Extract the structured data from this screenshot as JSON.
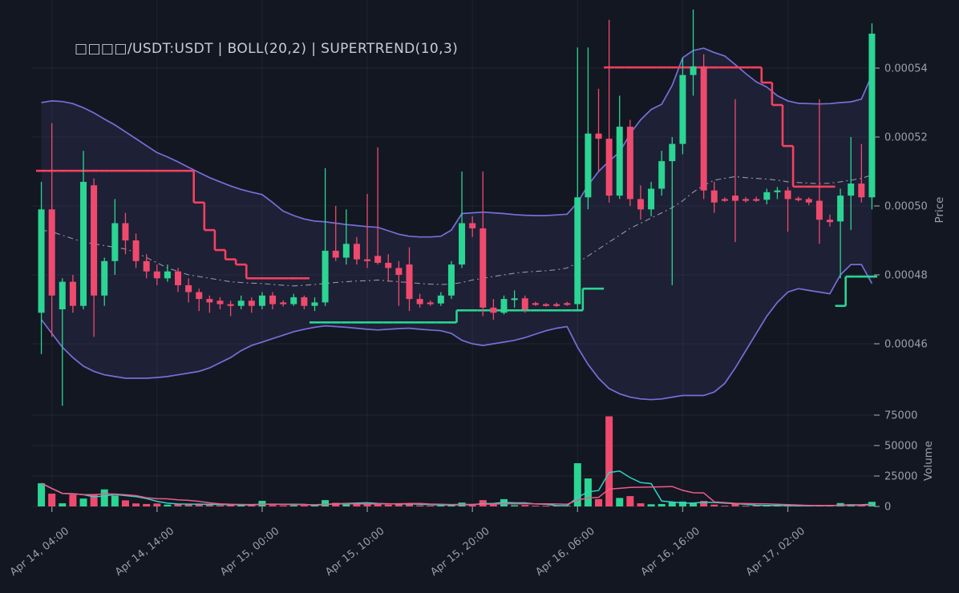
{
  "title": "□□□□/USDT:USDT | BOLL(20,2) | SUPERTREND(10,3)",
  "colors": {
    "background": "#131722",
    "grid": "rgba(200,208,222,0.07)",
    "candle_up": "#2bd593",
    "candle_down": "#ef4a6e",
    "boll_band": "#7470d8",
    "boll_fill": "rgba(124,116,222,0.10)",
    "boll_mid": "#a8adb8",
    "supertrend_up": "#2bd593",
    "supertrend_down": "#f5415f",
    "volume_ma_fast": "#2fd4c6",
    "volume_ma_slow": "#ee5c8b",
    "tick_text": "#9aa0ac",
    "tick_mark": "#8a8f99",
    "title_text": "#c7ccd6"
  },
  "axes": {
    "price_label": "Price",
    "volume_label": "Volume",
    "price_ticks": [
      {
        "value": 54,
        "label": "0.00054"
      },
      {
        "value": 52,
        "label": "0.00052"
      },
      {
        "value": 50,
        "label": "0.00050"
      },
      {
        "value": 48,
        "label": "0.00048"
      },
      {
        "value": 46,
        "label": "0.00046"
      }
    ],
    "volume_ticks": [
      {
        "value": 75000,
        "label": "75000"
      },
      {
        "value": 50000,
        "label": "50000"
      },
      {
        "value": 25000,
        "label": "25000"
      },
      {
        "value": 0,
        "label": "0"
      }
    ],
    "time_ticks": [
      {
        "index": 1,
        "label": "Apr 14, 04:00"
      },
      {
        "index": 11,
        "label": "Apr 14, 14:00"
      },
      {
        "index": 21,
        "label": "Apr 15, 00:00"
      },
      {
        "index": 31,
        "label": "Apr 15, 10:00"
      },
      {
        "index": 41,
        "label": "Apr 15, 20:00"
      },
      {
        "index": 51,
        "label": "Apr 16, 06:00"
      },
      {
        "index": 61,
        "label": "Apr 16, 16:00"
      },
      {
        "index": 71,
        "label": "Apr 17, 02:00"
      }
    ]
  },
  "chart_data": {
    "type": "candlestick",
    "symbol": "□□□□/USDT:USDT",
    "indicators": [
      "BOLL(20,2)",
      "SUPERTREND(10,3)"
    ],
    "timeframe_hours": 1,
    "price_unit": "1e-5 USDT",
    "price_range_shown": [
      46,
      54
    ],
    "volume_range_shown": [
      0,
      75000
    ],
    "candles_ohlcv": [
      [
        46.9,
        50.7,
        45.7,
        49.9,
        19000
      ],
      [
        49.9,
        52.4,
        46.2,
        47.4,
        10500
      ],
      [
        47.0,
        47.9,
        44.2,
        47.8,
        2600
      ],
      [
        47.8,
        48.0,
        46.9,
        47.1,
        9800
      ],
      [
        47.1,
        51.6,
        47.0,
        50.7,
        6500
      ],
      [
        50.6,
        50.8,
        46.2,
        47.4,
        10000
      ],
      [
        47.4,
        48.5,
        47.1,
        48.4,
        14000
      ],
      [
        48.4,
        50.2,
        48.0,
        49.5,
        9000
      ],
      [
        49.5,
        49.8,
        48.6,
        49.0,
        5000
      ],
      [
        49.0,
        49.2,
        48.2,
        48.4,
        2500
      ],
      [
        48.4,
        48.6,
        47.9,
        48.1,
        2000
      ],
      [
        48.1,
        48.3,
        47.7,
        47.9,
        2400
      ],
      [
        47.9,
        48.3,
        47.8,
        48.1,
        1500
      ],
      [
        48.1,
        48.2,
        47.5,
        47.7,
        1800
      ],
      [
        47.7,
        47.9,
        47.2,
        47.5,
        2000
      ],
      [
        47.5,
        47.6,
        46.95,
        47.3,
        1700
      ],
      [
        47.3,
        47.4,
        46.9,
        47.2,
        1500
      ],
      [
        47.25,
        47.35,
        47.0,
        47.15,
        900
      ],
      [
        47.15,
        47.25,
        46.8,
        47.1,
        1300
      ],
      [
        47.1,
        47.4,
        47.0,
        47.25,
        1100
      ],
      [
        47.25,
        47.35,
        46.9,
        47.1,
        1400
      ],
      [
        47.1,
        47.5,
        47.0,
        47.4,
        4600
      ],
      [
        47.4,
        47.5,
        47.0,
        47.15,
        1200
      ],
      [
        47.2,
        47.26,
        47.08,
        47.15,
        800
      ],
      [
        47.15,
        47.45,
        47.1,
        47.35,
        1000
      ],
      [
        47.35,
        47.4,
        47.0,
        47.1,
        900
      ],
      [
        47.1,
        47.35,
        46.95,
        47.2,
        700
      ],
      [
        47.2,
        51.1,
        47.1,
        48.7,
        5200
      ],
      [
        48.7,
        50.0,
        48.4,
        48.5,
        3000
      ],
      [
        48.5,
        49.9,
        48.3,
        48.9,
        2800
      ],
      [
        48.9,
        49.1,
        48.3,
        48.45,
        2000
      ],
      [
        48.45,
        50.35,
        48.2,
        48.4,
        2200
      ],
      [
        48.55,
        51.7,
        48.3,
        48.35,
        2600
      ],
      [
        48.35,
        48.6,
        47.8,
        48.2,
        1500
      ],
      [
        48.2,
        48.4,
        47.1,
        48.0,
        1700
      ],
      [
        48.3,
        48.8,
        46.95,
        47.3,
        2400
      ],
      [
        47.3,
        47.45,
        47.05,
        47.15,
        900
      ],
      [
        47.2,
        47.26,
        47.1,
        47.17,
        600
      ],
      [
        47.17,
        47.5,
        47.1,
        47.4,
        800
      ],
      [
        47.4,
        48.4,
        47.3,
        48.3,
        1400
      ],
      [
        48.3,
        51.0,
        48.2,
        49.5,
        3200
      ],
      [
        49.5,
        49.7,
        49.1,
        49.35,
        1200
      ],
      [
        49.35,
        51.0,
        46.8,
        47.05,
        5200
      ],
      [
        47.05,
        47.3,
        46.7,
        46.9,
        1500
      ],
      [
        46.9,
        47.4,
        46.85,
        47.3,
        6000
      ],
      [
        47.3,
        47.55,
        47.05,
        47.32,
        1000
      ],
      [
        47.32,
        47.4,
        46.9,
        47.0,
        1200
      ],
      [
        47.18,
        47.22,
        47.1,
        47.15,
        500
      ],
      [
        47.15,
        47.18,
        47.08,
        47.12,
        400
      ],
      [
        47.15,
        47.2,
        47.07,
        47.12,
        450
      ],
      [
        47.18,
        47.22,
        47.1,
        47.15,
        500
      ],
      [
        47.15,
        54.6,
        47.0,
        50.25,
        35500
      ],
      [
        50.25,
        54.6,
        49.9,
        52.1,
        23000
      ],
      [
        52.1,
        53.4,
        51.0,
        51.95,
        6000
      ],
      [
        51.95,
        55.4,
        50.1,
        50.3,
        74000
      ],
      [
        50.3,
        53.2,
        50.2,
        52.3,
        7000
      ],
      [
        52.3,
        52.5,
        50.0,
        50.2,
        8500
      ],
      [
        50.2,
        50.6,
        49.6,
        49.9,
        2600
      ],
      [
        49.9,
        50.7,
        49.7,
        50.5,
        1800
      ],
      [
        50.5,
        51.6,
        50.3,
        51.3,
        2000
      ],
      [
        51.3,
        52.0,
        47.7,
        51.8,
        3500
      ],
      [
        51.8,
        54.3,
        51.5,
        53.8,
        4000
      ],
      [
        53.8,
        55.7,
        53.2,
        54.05,
        3000
      ],
      [
        54.05,
        54.4,
        50.2,
        50.45,
        4500
      ],
      [
        50.45,
        50.7,
        49.8,
        50.1,
        1500
      ],
      [
        50.2,
        50.25,
        50.12,
        50.17,
        600
      ],
      [
        50.3,
        53.1,
        48.95,
        50.15,
        2000
      ],
      [
        50.2,
        50.26,
        50.1,
        50.17,
        500
      ],
      [
        50.2,
        50.27,
        50.12,
        50.18,
        450
      ],
      [
        50.18,
        50.5,
        50.05,
        50.4,
        800
      ],
      [
        50.4,
        50.55,
        50.2,
        50.45,
        600
      ],
      [
        50.45,
        50.55,
        49.25,
        50.2,
        800
      ],
      [
        50.22,
        50.27,
        50.13,
        50.2,
        400
      ],
      [
        50.2,
        50.25,
        50.02,
        50.1,
        500
      ],
      [
        50.15,
        53.1,
        48.9,
        49.6,
        1000
      ],
      [
        49.6,
        49.75,
        49.4,
        49.53,
        600
      ],
      [
        49.55,
        50.5,
        47.9,
        50.3,
        2800
      ],
      [
        50.3,
        52.0,
        49.3,
        50.65,
        1800
      ],
      [
        50.65,
        51.8,
        50.1,
        50.25,
        700
      ],
      [
        50.25,
        55.3,
        49.9,
        55.0,
        3800
      ]
    ],
    "boll_upper": [
      53.0,
      53.05,
      53.03,
      52.97,
      52.85,
      52.7,
      52.52,
      52.35,
      52.15,
      51.95,
      51.75,
      51.55,
      51.42,
      51.28,
      51.12,
      50.97,
      50.82,
      50.7,
      50.58,
      50.48,
      50.4,
      50.33,
      50.1,
      49.85,
      49.72,
      49.62,
      49.56,
      49.54,
      49.5,
      49.46,
      49.43,
      49.4,
      49.38,
      49.28,
      49.18,
      49.12,
      49.1,
      49.1,
      49.12,
      49.3,
      49.78,
      49.8,
      49.82,
      49.8,
      49.78,
      49.75,
      49.73,
      49.72,
      49.72,
      49.74,
      49.76,
      50.1,
      50.6,
      51.0,
      51.3,
      51.56,
      52.1,
      52.5,
      52.8,
      52.95,
      53.5,
      54.3,
      54.51,
      54.58,
      54.45,
      54.35,
      54.1,
      53.84,
      53.6,
      53.45,
      53.2,
      53.05,
      52.98,
      52.97,
      52.96,
      52.97,
      53.0,
      53.02,
      53.1,
      53.8
    ],
    "boll_middle": [
      49.3,
      49.25,
      49.15,
      49.05,
      48.95,
      48.9,
      48.85,
      48.8,
      48.75,
      48.65,
      48.5,
      48.35,
      48.2,
      48.1,
      48.0,
      47.95,
      47.9,
      47.85,
      47.8,
      47.78,
      47.76,
      47.75,
      47.72,
      47.7,
      47.68,
      47.7,
      47.72,
      47.75,
      47.78,
      47.8,
      47.82,
      47.83,
      47.85,
      47.82,
      47.8,
      47.78,
      47.75,
      47.73,
      47.72,
      47.73,
      47.78,
      47.85,
      47.9,
      47.95,
      48.0,
      48.05,
      48.08,
      48.1,
      48.12,
      48.15,
      48.2,
      48.35,
      48.55,
      48.75,
      48.95,
      49.15,
      49.35,
      49.5,
      49.65,
      49.8,
      49.95,
      50.15,
      50.4,
      50.6,
      50.75,
      50.8,
      50.85,
      50.82,
      50.8,
      50.78,
      50.75,
      50.7,
      50.68,
      50.66,
      50.65,
      50.66,
      50.7,
      50.75,
      50.8,
      50.9
    ],
    "boll_lower": [
      46.7,
      46.3,
      45.9,
      45.6,
      45.35,
      45.2,
      45.1,
      45.05,
      45.0,
      45.0,
      45.0,
      45.02,
      45.05,
      45.1,
      45.15,
      45.2,
      45.3,
      45.45,
      45.6,
      45.8,
      45.95,
      46.05,
      46.15,
      46.25,
      46.35,
      46.42,
      46.48,
      46.52,
      46.5,
      46.48,
      46.45,
      46.42,
      46.4,
      46.42,
      46.44,
      46.45,
      46.42,
      46.4,
      46.38,
      46.3,
      46.1,
      46.0,
      45.95,
      46.0,
      46.05,
      46.1,
      46.18,
      46.28,
      46.38,
      46.45,
      46.5,
      45.9,
      45.4,
      45.0,
      44.7,
      44.55,
      44.45,
      44.4,
      44.38,
      44.4,
      44.45,
      44.5,
      44.5,
      44.5,
      44.6,
      44.85,
      45.3,
      45.8,
      46.3,
      46.8,
      47.2,
      47.5,
      47.6,
      47.55,
      47.5,
      47.45,
      48.0,
      48.3,
      48.3,
      47.75
    ],
    "supertrend_runs": [
      [
        15,
        "down",
        51.02
      ],
      [
        1,
        "down",
        50.1
      ],
      [
        1,
        "down",
        49.3
      ],
      [
        1,
        "down",
        48.72
      ],
      [
        1,
        "down",
        48.45
      ],
      [
        1,
        "down",
        48.3
      ],
      [
        6,
        "down",
        47.9
      ],
      [
        14,
        "up",
        46.62
      ],
      [
        12,
        "up",
        46.97
      ],
      [
        2,
        "up",
        47.6
      ],
      [
        15,
        "down",
        54.02
      ],
      [
        1,
        "down",
        53.58
      ],
      [
        1,
        "down",
        52.93
      ],
      [
        1,
        "down",
        51.74
      ],
      [
        4,
        "down",
        50.56
      ],
      [
        1,
        "up",
        47.1
      ],
      [
        3,
        "up",
        47.95
      ]
    ],
    "volume_ma": [
      {
        "name": "fast",
        "period": 5
      },
      {
        "name": "slow",
        "period": 10
      }
    ]
  }
}
